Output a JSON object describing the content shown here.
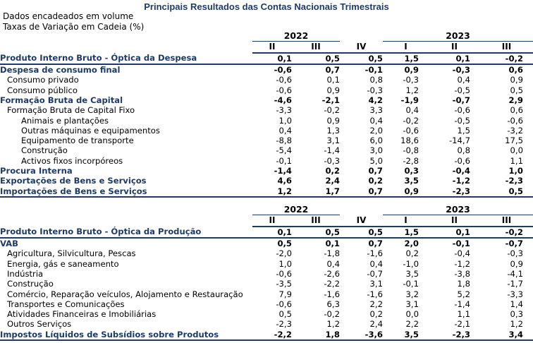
{
  "title": "Principais Resultados das Contas Nacionais Trimestrais",
  "notes": [
    "Dados encadeados em volume",
    "Taxas de Variação em Cadeia (%)"
  ],
  "years": [
    "2022",
    "2023"
  ],
  "quarters": [
    "II",
    "III",
    "IV",
    "I",
    "II",
    "III"
  ],
  "table1": [
    {
      "label": "Produto Interno Bruto - Óptica da Despesa",
      "values": [
        "0,1",
        "0,5",
        "0,5",
        "1,5",
        "0,1",
        "-0,2"
      ]
    },
    {
      "label": "Despesa de consumo final",
      "values": [
        "-0,6",
        "0,7",
        "-0,1",
        "0,9",
        "-0,3",
        "0,6"
      ]
    },
    {
      "label": "Consumo privado",
      "values": [
        "-0,6",
        "0,1",
        "0,8",
        "-0,3",
        "0,4",
        "0,9"
      ]
    },
    {
      "label": "Consumo público",
      "values": [
        "-0,6",
        "0,9",
        "-0,3",
        "1,2",
        "-0,5",
        "0,5"
      ]
    },
    {
      "label": "Formação Bruta de Capital",
      "values": [
        "-4,6",
        "-2,1",
        "4,2",
        "-1,9",
        "-0,7",
        "2,9"
      ]
    },
    {
      "label": "Formação Bruta de Capital Fixo",
      "values": [
        "-3,3",
        "-0,2",
        "3,3",
        "0,4",
        "-0,6",
        "0,6"
      ]
    },
    {
      "label": "Animais e plantações",
      "values": [
        "1,0",
        "0,9",
        "0,4",
        "-0,2",
        "-0,5",
        "-0,6"
      ]
    },
    {
      "label": "Outras máquinas e equipamentos",
      "values": [
        "0,4",
        "1,3",
        "2,0",
        "-0,6",
        "1,5",
        "-3,2"
      ]
    },
    {
      "label": "Equipamento de transporte",
      "values": [
        "-8,8",
        "3,1",
        "6,0",
        "18,6",
        "-14,7",
        "17,5"
      ]
    },
    {
      "label": "Construção",
      "values": [
        "-5,4",
        "-1,4",
        "3,0",
        "-0,8",
        "0,8",
        "0,0"
      ]
    },
    {
      "label": "Activos fixos incorpóreos",
      "values": [
        "-0,1",
        "-0,3",
        "5,0",
        "-2,8",
        "-0,6",
        "1,1"
      ]
    },
    {
      "label": "Procura Interna",
      "values": [
        "-1,4",
        "0,2",
        "0,7",
        "0,3",
        "-0,4",
        "1,0"
      ]
    },
    {
      "label": "Exportações de Bens e Serviços",
      "values": [
        "4,6",
        "2,4",
        "0,2",
        "3,5",
        "-1,2",
        "-2,3"
      ]
    },
    {
      "label": "Importações de Bens e Serviços",
      "values": [
        "1,2",
        "1,7",
        "0,7",
        "0,9",
        "-2,3",
        "0,5"
      ]
    }
  ],
  "table2": [
    {
      "label": "Produto Interno Bruto - Óptica da Produção",
      "values": [
        "0,1",
        "0,5",
        "0,5",
        "1,5",
        "0,1",
        "-0,2"
      ]
    },
    {
      "label": "VAB",
      "values": [
        "0,5",
        "0,1",
        "0,7",
        "2,0",
        "-0,1",
        "-0,7"
      ]
    },
    {
      "label": "Agricultura, Silvicultura, Pescas",
      "values": [
        "-2,0",
        "-1,8",
        "-1,6",
        "0,2",
        "-0,4",
        "-0,3"
      ]
    },
    {
      "label": "Energia, gás e saneamento",
      "values": [
        "1,0",
        "0,4",
        "0,4",
        "-1,0",
        "-1,2",
        "0,9"
      ]
    },
    {
      "label": "Indústria",
      "values": [
        "-0,6",
        "-2,6",
        "-0,7",
        "3,5",
        "-3,8",
        "-4,1"
      ]
    },
    {
      "label": "Construção",
      "values": [
        "-3,5",
        "-2,2",
        "3,1",
        "-0,1",
        "1,8",
        "-1,7"
      ]
    },
    {
      "label": "Comércio, Reparação veículos, Alojamento e Restauração",
      "values": [
        "7,9",
        "-1,6",
        "-1,6",
        "3,2",
        "5,2",
        "-3,3"
      ]
    },
    {
      "label": "Transportes e Comunicações",
      "values": [
        "-0,6",
        "6,3",
        "2,2",
        "3,1",
        "-1,4",
        "1,4"
      ]
    },
    {
      "label": "Atividades Financeiras e Imobiliárias",
      "values": [
        "0,5",
        "-0,2",
        "0,2",
        "0,0",
        "1,1",
        "0,3"
      ]
    },
    {
      "label": "Outros Serviços",
      "values": [
        "-2,3",
        "1,2",
        "2,4",
        "2,2",
        "-2,1",
        "1,2"
      ]
    },
    {
      "label": "Impostos Líquidos de Subsídios sobre Produtos",
      "values": [
        "-2,2",
        "1,8",
        "-3,6",
        "3,5",
        "-2,3",
        "3,4"
      ]
    }
  ]
}
